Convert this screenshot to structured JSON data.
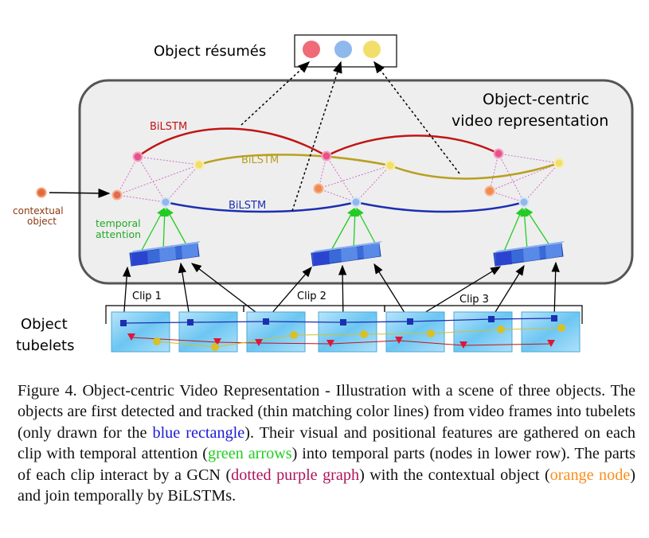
{
  "figure": {
    "resumes_label": "Object résumés",
    "representation_label_line1": "Object-centric",
    "representation_label_line2": "video representation",
    "bilstm_red": "BiLSTM",
    "bilstm_yellow": "BiLSTM",
    "bilstm_blue": "BiLSTM",
    "contextual_line1": "contextual",
    "contextual_line2": "object",
    "temporal_line1": "temporal",
    "temporal_line2": "attention",
    "clip1": "Clip 1",
    "clip2": "Clip 2",
    "clip3": "Clip 3",
    "tubelets_line1": "Object",
    "tubelets_line2": "tubelets",
    "colors": {
      "red_object": "#f06a78",
      "blue_object": "#8fb8ec",
      "yellow_object": "#f2de6a",
      "contextual_orange": "#f59a5a",
      "red_lstm": "#c01515",
      "yellow_lstm": "#b8a020",
      "blue_lstm": "#1c2fb0",
      "attention_green": "#22cc22",
      "gcn_purple": "#d070c8"
    }
  },
  "caption": {
    "s1": "Figure 4.  Object-centric Video Representation - Illustration with a scene of three objects. The objects are first detected and tracked (thin matching color lines) from video frames into tubelets (only drawn for the ",
    "h1": "blue rectangle",
    "s2": "). Their visual and positional features are gathered on each clip with temporal attention (",
    "h2": "green arrows",
    "s3": ") into temporal parts (nodes in lower row). The parts of each clip interact by a GCN (",
    "h3": "dotted purple graph",
    "s4": ") with the contextual object (",
    "h4": "orange node",
    "s5": ") and join temporally by BiLSTMs."
  }
}
